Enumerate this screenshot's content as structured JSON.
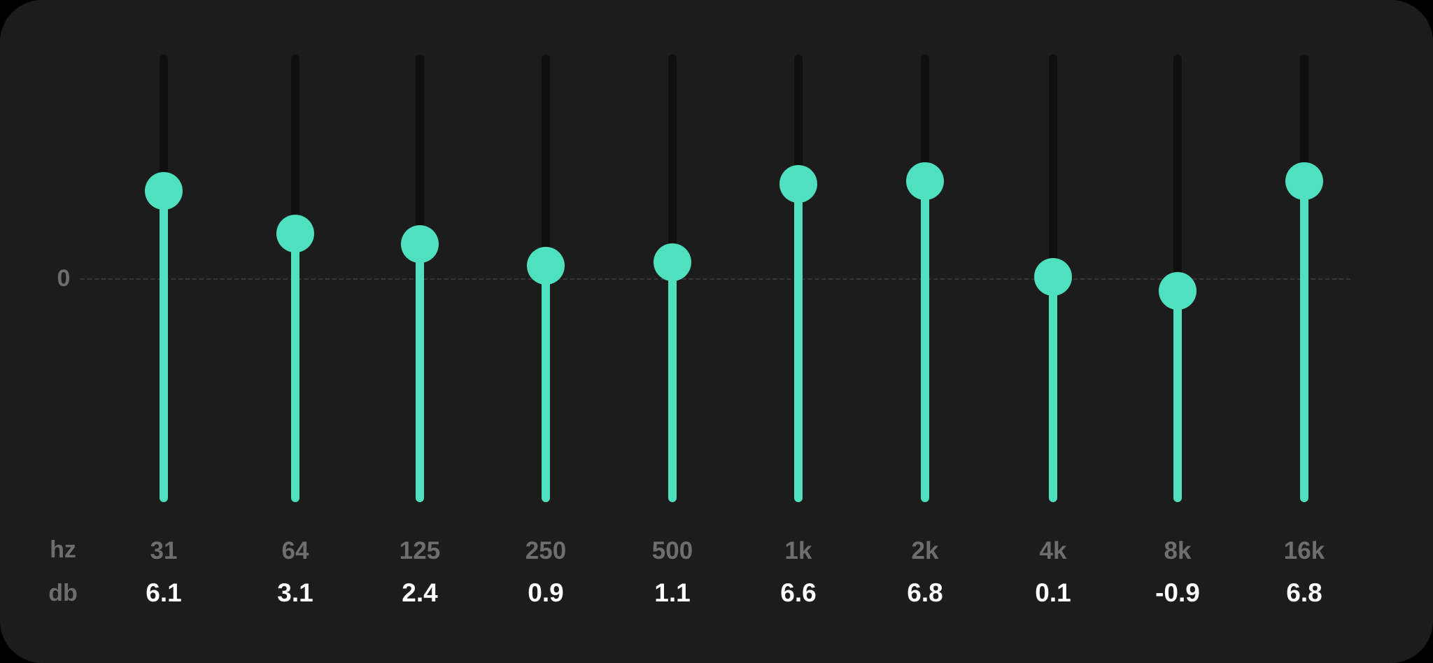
{
  "equalizer": {
    "zero_label": "0",
    "hz_label": "hz",
    "db_label": "db",
    "accent_color": "#4fe0bf",
    "track_color": "#0f0f0f",
    "background_color": "#1c1c1c",
    "bands": [
      {
        "freq": "31",
        "gain_label": "6.1",
        "gain": 6.1
      },
      {
        "freq": "64",
        "gain_label": "3.1",
        "gain": 3.1
      },
      {
        "freq": "125",
        "gain_label": "2.4",
        "gain": 2.4
      },
      {
        "freq": "250",
        "gain_label": "0.9",
        "gain": 0.9
      },
      {
        "freq": "500",
        "gain_label": "1.1",
        "gain": 1.1
      },
      {
        "freq": "1k",
        "gain_label": "6.6",
        "gain": 6.6
      },
      {
        "freq": "2k",
        "gain_label": "6.8",
        "gain": 6.8
      },
      {
        "freq": "4k",
        "gain_label": "0.1",
        "gain": 0.1
      },
      {
        "freq": "8k",
        "gain_label": "-0.9",
        "gain": -0.9
      },
      {
        "freq": "16k",
        "gain_label": "6.8",
        "gain": 6.8
      }
    ]
  }
}
